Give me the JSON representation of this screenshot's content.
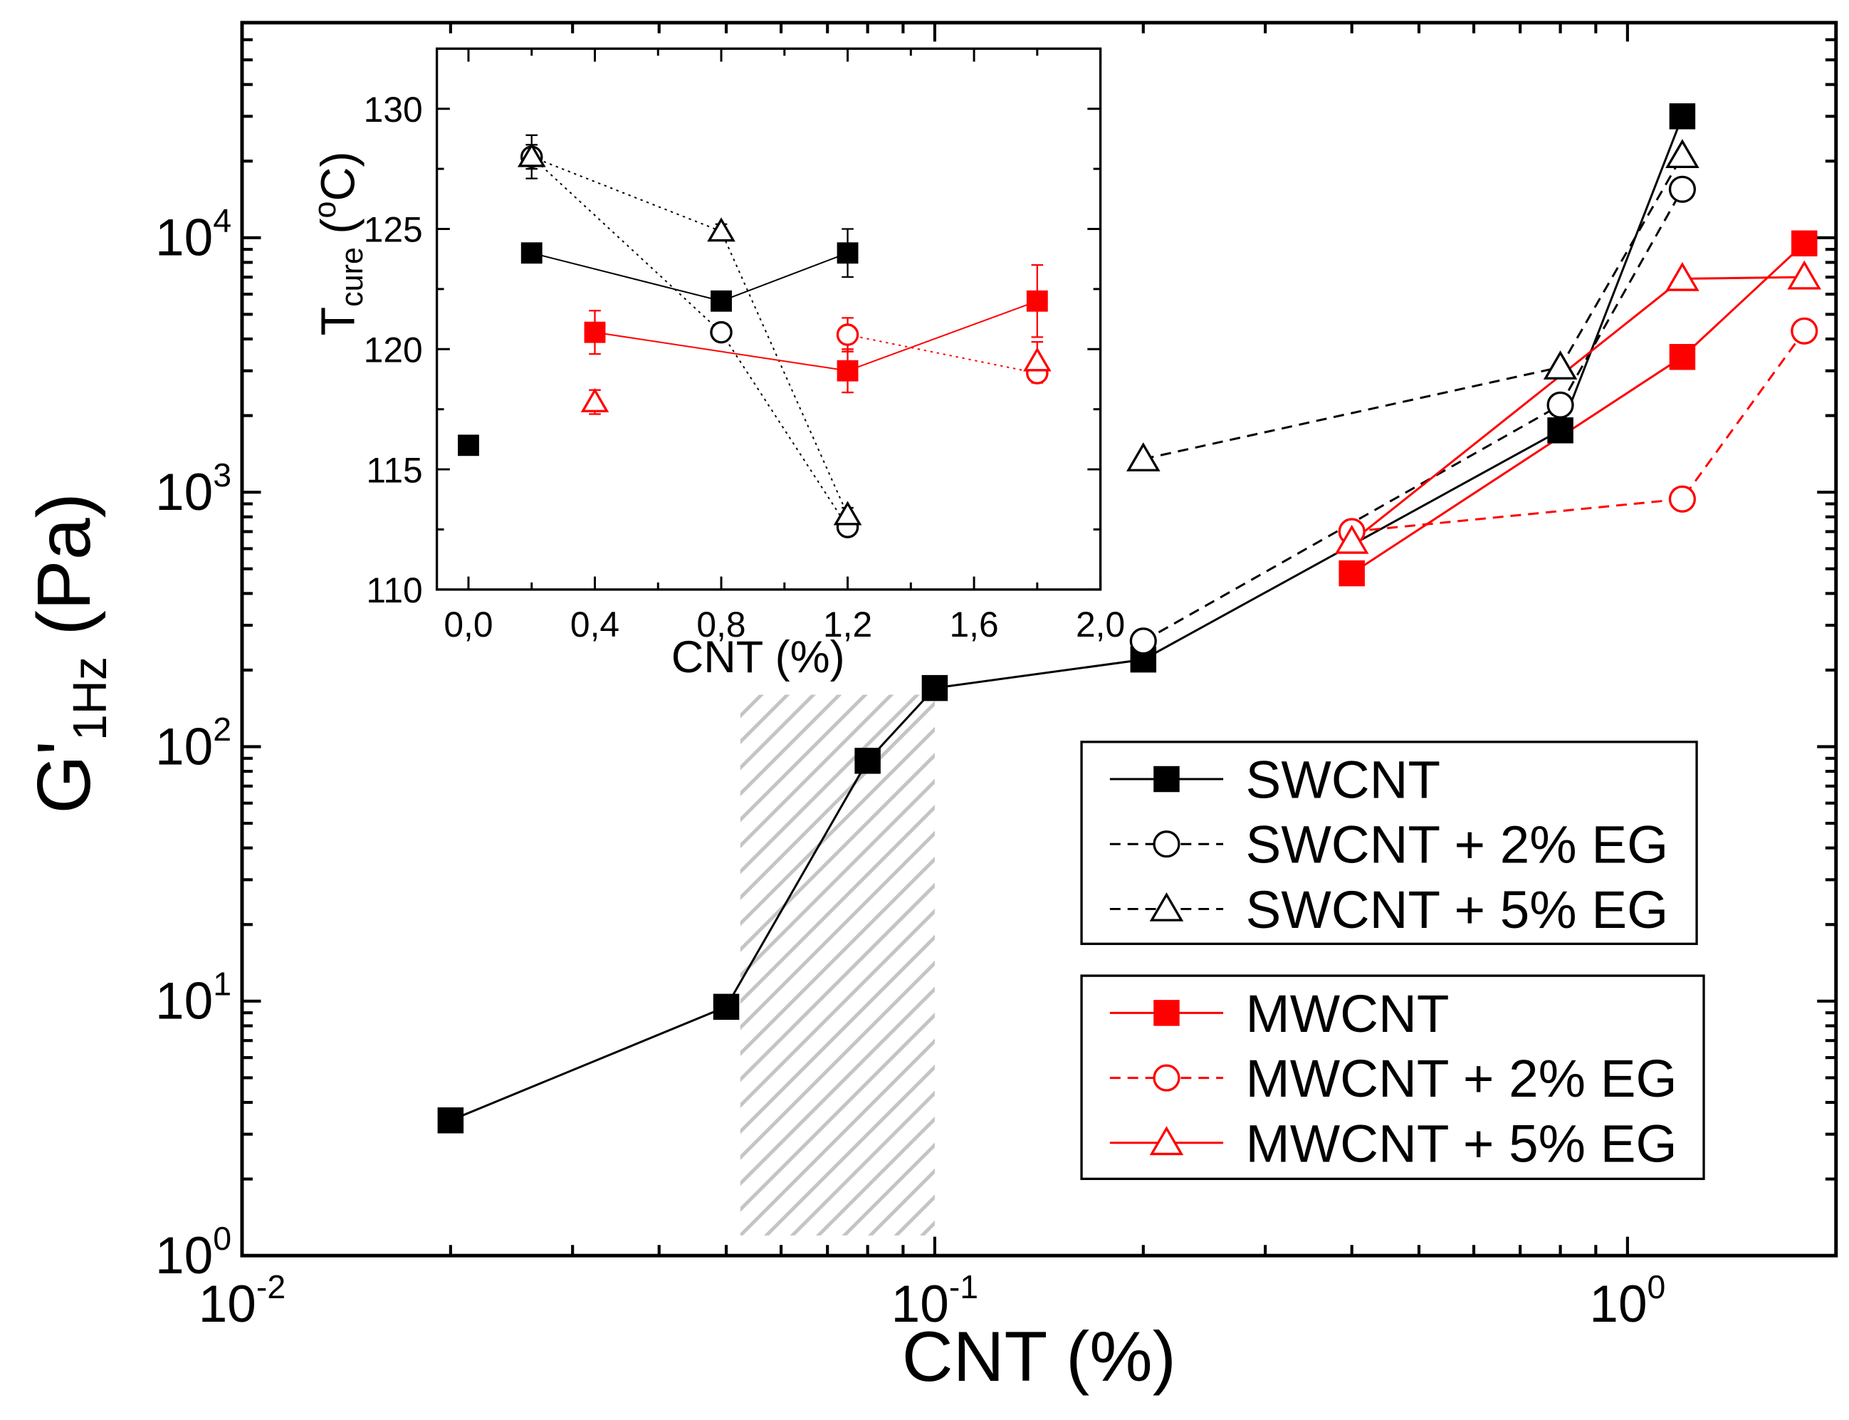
{
  "chart_data": [
    {
      "type": "scatter",
      "title": "",
      "xlabel": "CNT (%)",
      "ylabel": {
        "main": "G'",
        "sub": "1Hz",
        "unit": " (Pa)"
      },
      "xscale": "log",
      "yscale": "log",
      "xlim": [
        0.01,
        2.0
      ],
      "ylim": [
        1,
        70000
      ],
      "grid": false,
      "x_ticks": [
        {
          "value": 0.01,
          "base": "10",
          "exp": "-2"
        },
        {
          "value": 0.1,
          "base": "10",
          "exp": "-1"
        },
        {
          "value": 1,
          "base": "10",
          "exp": "0"
        }
      ],
      "y_ticks": [
        {
          "value": 1,
          "base": "10",
          "exp": "0"
        },
        {
          "value": 10,
          "base": "10",
          "exp": "1"
        },
        {
          "value": 100,
          "base": "10",
          "exp": "2"
        },
        {
          "value": 1000,
          "base": "10",
          "exp": "3"
        },
        {
          "value": 10000,
          "base": "10",
          "exp": "4"
        }
      ],
      "shaded_region": {
        "x": [
          0.0524,
          0.1
        ],
        "y": [
          1.2,
          160
        ],
        "pattern": "diagonal-hatch",
        "color": "#c4c4c4"
      },
      "legend": {
        "position": "center-right",
        "groups": [
          [
            0,
            1,
            2
          ],
          [
            3,
            4,
            5
          ]
        ]
      },
      "series": [
        {
          "name": "SWCNT",
          "color": "#000000",
          "marker": "square-filled",
          "line": "solid",
          "x": [
            0.02,
            0.05,
            0.08,
            0.1,
            0.2,
            0.8,
            1.2
          ],
          "y": [
            3.4,
            9.5,
            88,
            170,
            220,
            1750,
            30000
          ]
        },
        {
          "name": "SWCNT + 2% EG",
          "color": "#000000",
          "marker": "circle-open",
          "line": "dashed",
          "x": [
            0.2,
            0.8,
            1.2
          ],
          "y": [
            260,
            2200,
            15500
          ]
        },
        {
          "name": "SWCNT + 5% EG",
          "color": "#000000",
          "marker": "triangle-open",
          "line": "dashed",
          "x": [
            0.2,
            0.8,
            1.2
          ],
          "y": [
            1350,
            3100,
            21000
          ]
        },
        {
          "name": "MWCNT",
          "color": "#ff0000",
          "marker": "square-filled",
          "line": "solid",
          "x": [
            0.4,
            1.2,
            1.8
          ],
          "y": [
            480,
            3400,
            9500
          ]
        },
        {
          "name": "MWCNT + 2% EG",
          "color": "#ff0000",
          "marker": "circle-open",
          "line": "dashed",
          "x": [
            0.4,
            1.2,
            1.8
          ],
          "y": [
            700,
            940,
            4300
          ]
        },
        {
          "name": "MWCNT + 5% EG",
          "color": "#ff0000",
          "marker": "triangle-open",
          "line": "solid",
          "x": [
            0.4,
            1.2,
            1.8
          ],
          "y": [
            640,
            6900,
            7000
          ]
        }
      ]
    },
    {
      "type": "scatter",
      "title": "",
      "xlabel": "CNT (%)",
      "ylabel": {
        "main": "T",
        "sub": "cure",
        "open": " (",
        "sup": "o",
        "close": "C)"
      },
      "xlim": [
        -0.1,
        2.0
      ],
      "ylim": [
        110,
        132.5
      ],
      "grid": false,
      "x_ticks": [
        {
          "value": 0.0,
          "label": "0,0"
        },
        {
          "value": 0.4,
          "label": "0,4"
        },
        {
          "value": 0.8,
          "label": "0,8"
        },
        {
          "value": 1.2,
          "label": "1,2"
        },
        {
          "value": 1.6,
          "label": "1,6"
        },
        {
          "value": 2.0,
          "label": "2,0"
        }
      ],
      "x_minor_ticks": [
        0.2,
        0.6,
        1.0,
        1.4,
        1.8
      ],
      "y_ticks": [
        {
          "value": 110,
          "label": "110"
        },
        {
          "value": 115,
          "label": "115"
        },
        {
          "value": 120,
          "label": "120"
        },
        {
          "value": 125,
          "label": "125"
        },
        {
          "value": 130,
          "label": "130"
        }
      ],
      "y_minor_ticks": [
        112.5,
        117.5,
        122.5,
        127.5
      ],
      "series": [
        {
          "color": "#000000",
          "marker": "square-filled",
          "line": "solid",
          "line_start": 1,
          "x": [
            0.0,
            0.2,
            0.8,
            1.2
          ],
          "y": [
            116.0,
            124.0,
            122.0,
            124.0
          ],
          "yerr": [
            0.2,
            0.3,
            0.4,
            1.0
          ]
        },
        {
          "color": "#000000",
          "marker": "circle-open",
          "line": "dotted",
          "line_start": 0,
          "x": [
            0.2,
            0.8,
            1.2
          ],
          "y": [
            128.0,
            120.7,
            112.6
          ],
          "yerr": [
            0.9,
            0.3,
            0.3
          ]
        },
        {
          "color": "#000000",
          "marker": "triangle-open",
          "line": "dotted",
          "line_start": 0,
          "x": [
            0.2,
            0.8,
            1.2
          ],
          "y": [
            128.0,
            124.9,
            113.1
          ],
          "yerr": [
            0.5,
            0.3,
            0.3
          ]
        },
        {
          "color": "#ff0000",
          "marker": "square-filled",
          "line": "solid",
          "line_start": 0,
          "x": [
            0.4,
            1.2,
            1.8
          ],
          "y": [
            120.7,
            119.1,
            122.0
          ],
          "yerr": [
            0.9,
            0.9,
            1.5
          ]
        },
        {
          "color": "#ff0000",
          "marker": "circle-open",
          "line": "dotted",
          "line_start": 0,
          "x": [
            1.2,
            1.8
          ],
          "y": [
            120.6,
            119.0
          ],
          "yerr": [
            0.7,
            0.4
          ]
        },
        {
          "color": "#ff0000",
          "marker": "triangle-open",
          "line": "none",
          "line_start": 0,
          "x": [
            0.4,
            1.8
          ],
          "y": [
            117.8,
            119.5
          ],
          "yerr": [
            0.5,
            0.8
          ]
        }
      ]
    }
  ]
}
